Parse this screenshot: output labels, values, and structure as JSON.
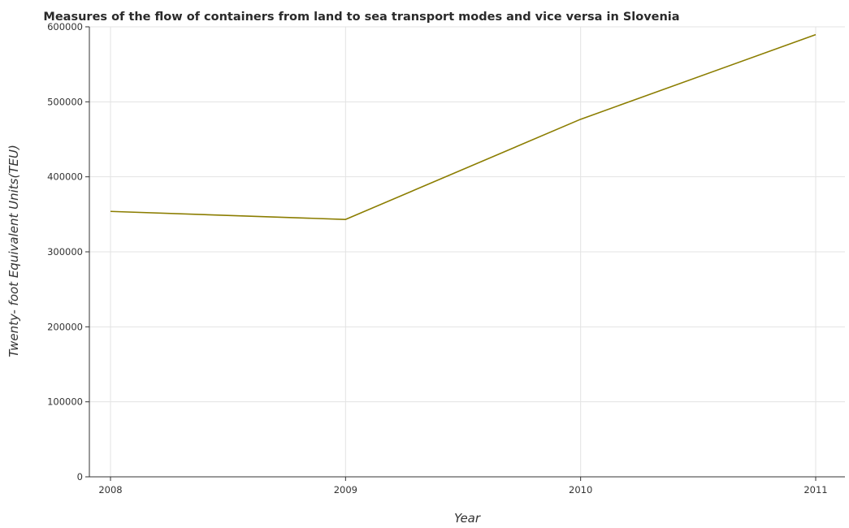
{
  "chart_data": {
    "type": "line",
    "title": "Measures of the flow of containers from land to sea transport modes and vice versa in Slovenia",
    "xlabel": "Year",
    "ylabel": "Twenty- foot Equivalent Units(TEU)",
    "categories": [
      "2008",
      "2009",
      "2010",
      "2011"
    ],
    "series": [
      {
        "values": [
          353880,
          343165,
          476731,
          589563
        ],
        "color": "#8b7d00"
      }
    ],
    "ylim": [
      0,
      600000
    ],
    "yticks": [
      0,
      100000,
      200000,
      300000,
      400000,
      500000,
      600000
    ],
    "ytick_labels": [
      "0",
      "100000",
      "200000",
      "300000",
      "400000",
      "500000",
      "600000"
    ],
    "grid": true,
    "legend": "none"
  }
}
